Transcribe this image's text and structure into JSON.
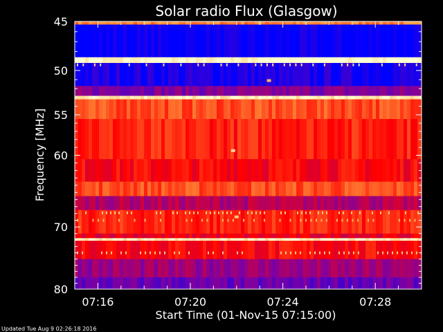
{
  "chart_data": {
    "type": "heatmap",
    "title": "Solar radio Flux (Glasgow)",
    "xlabel": "Start Time (01-Nov-15 07:15:00)",
    "ylabel": "Frequency [MHz]",
    "footer": "Updated Tue Aug  9 02:26:18 2016",
    "x_ticks": [
      {
        "label": "07:16",
        "minutes": 16
      },
      {
        "label": "07:20",
        "minutes": 20
      },
      {
        "label": "07:24",
        "minutes": 24
      },
      {
        "label": "07:28",
        "minutes": 28
      }
    ],
    "xlim_minutes": [
      15,
      30
    ],
    "y_ticks": [
      45,
      50,
      55,
      60,
      70,
      80
    ],
    "ylim": [
      45,
      80
    ],
    "colormap": [
      "#0000ff",
      "#8000a0",
      "#ff0000",
      "#ffa040",
      "#ffffd0"
    ],
    "bands": [
      {
        "from": 45.0,
        "to": 45.3,
        "level": 0.7
      },
      {
        "from": 45.3,
        "to": 48.6,
        "level": 0.0
      },
      {
        "from": 48.6,
        "to": 49.2,
        "level": 1.0
      },
      {
        "from": 49.2,
        "to": 51.7,
        "level": 0.05
      },
      {
        "from": 51.7,
        "to": 52.8,
        "level": 0.25
      },
      {
        "from": 52.8,
        "to": 53.2,
        "level": 0.95
      },
      {
        "from": 53.2,
        "to": 55.5,
        "level": 0.62
      },
      {
        "from": 55.5,
        "to": 60.5,
        "level": 0.55
      },
      {
        "from": 60.5,
        "to": 63.5,
        "level": 0.5
      },
      {
        "from": 63.5,
        "to": 65.5,
        "level": 0.62
      },
      {
        "from": 65.5,
        "to": 67.5,
        "level": 0.35
      },
      {
        "from": 67.5,
        "to": 71.0,
        "level": 0.55
      },
      {
        "from": 71.0,
        "to": 71.7,
        "level": 0.45
      },
      {
        "from": 71.7,
        "to": 72.1,
        "level": 0.95
      },
      {
        "from": 72.1,
        "to": 75.0,
        "level": 0.5
      },
      {
        "from": 75.0,
        "to": 78.0,
        "level": 0.3
      },
      {
        "from": 78.0,
        "to": 80.0,
        "level": 0.2
      }
    ],
    "bursts": [
      {
        "minutes": 21.85,
        "freq": 59.4,
        "level": 0.9
      },
      {
        "minutes": 23.4,
        "freq": 51.1,
        "level": 0.8
      },
      {
        "minutes": 22.0,
        "freq": 68.5,
        "level": 0.85
      }
    ]
  }
}
